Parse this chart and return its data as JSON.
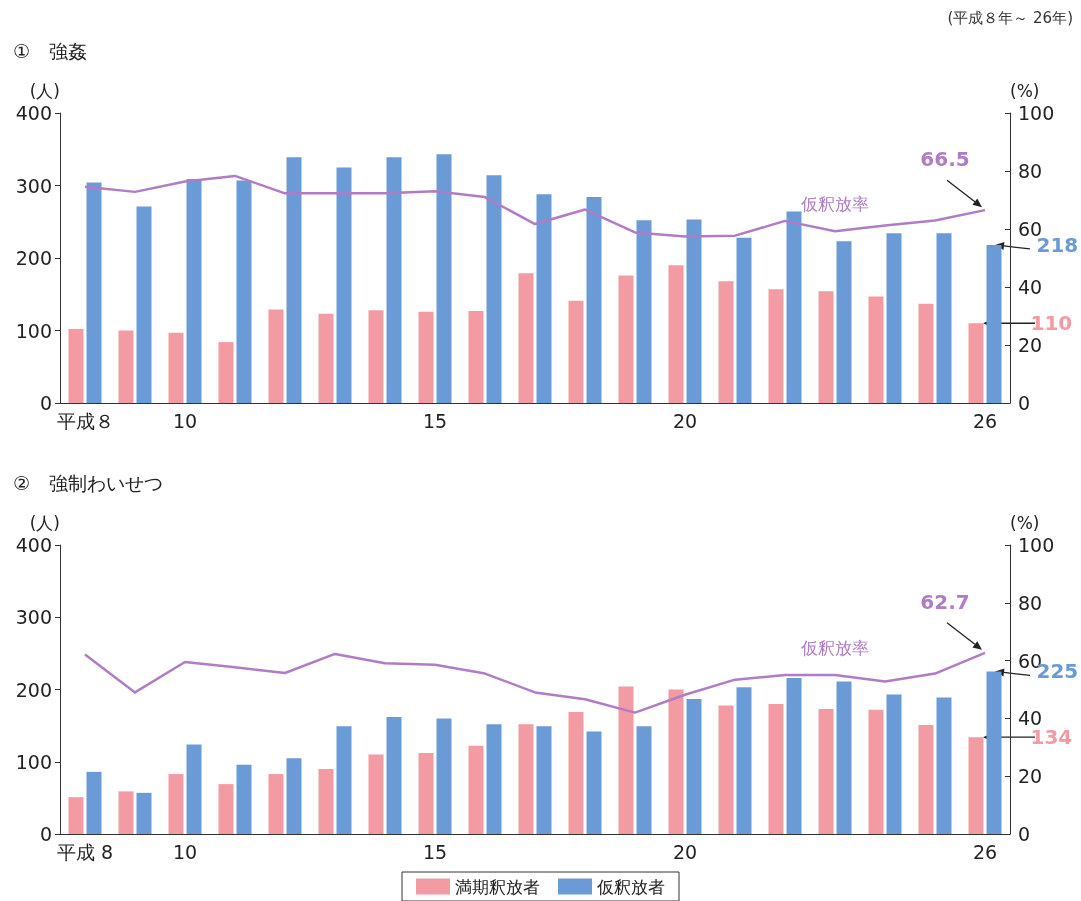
{
  "chart_data": [
    {
      "type": "bar",
      "title": "①　強姦",
      "ylabel": "(人)",
      "y2label": "(%)",
      "annotations": [
        "(平成８年～ 26年)"
      ],
      "categories": [
        "平成８",
        null,
        "10",
        null,
        null,
        null,
        null,
        "15",
        null,
        null,
        null,
        null,
        "20",
        null,
        null,
        null,
        null,
        null,
        "26"
      ],
      "ylim": [
        0,
        400
      ],
      "yticks": [
        0,
        100,
        200,
        300,
        400
      ],
      "y2lim": [
        0,
        100
      ],
      "y2ticks": [
        0,
        20,
        40,
        60,
        80,
        100
      ],
      "legend": false,
      "grid": false,
      "series": [
        {
          "color": "#f29ba2",
          "values": [
            102,
            100,
            97,
            84,
            129,
            123,
            128,
            126,
            127,
            179,
            141,
            176,
            190,
            168,
            157,
            154,
            147,
            137,
            110
          ],
          "value_labels": [
            null,
            null,
            null,
            null,
            null,
            null,
            null,
            null,
            null,
            null,
            null,
            null,
            null,
            null,
            null,
            null,
            null,
            null,
            "110"
          ]
        },
        {
          "color": "#6b9bd6",
          "values": [
            304,
            271,
            309,
            307,
            339,
            325,
            339,
            343,
            314,
            288,
            284,
            252,
            253,
            228,
            264,
            223,
            234,
            234,
            218
          ],
          "value_labels": [
            null,
            null,
            null,
            null,
            null,
            null,
            null,
            null,
            null,
            null,
            null,
            null,
            null,
            null,
            null,
            null,
            null,
            null,
            "218"
          ]
        },
        {
          "name": "仮釈放率",
          "type": "line",
          "axis": "y2",
          "color": "#b07cc6",
          "marker": "none",
          "values": [
            74.6,
            72.8,
            76.4,
            78.3,
            72.3,
            72.3,
            72.3,
            73.0,
            71.0,
            61.7,
            66.7,
            58.8,
            57.4,
            57.7,
            62.8,
            59.2,
            61.2,
            62.9,
            66.5
          ],
          "value_labels": [
            null,
            null,
            null,
            null,
            null,
            null,
            null,
            null,
            null,
            null,
            null,
            null,
            null,
            null,
            null,
            null,
            null,
            null,
            "66.5"
          ]
        }
      ]
    },
    {
      "type": "bar",
      "title": "②　強制わいせつ",
      "ylabel": "(人)",
      "y2label": "(%)",
      "categories": [
        "平成 8",
        null,
        "10",
        null,
        null,
        null,
        null,
        "15",
        null,
        null,
        null,
        null,
        "20",
        null,
        null,
        null,
        null,
        null,
        "26"
      ],
      "ylim": [
        0,
        400
      ],
      "yticks": [
        0,
        100,
        200,
        300,
        400
      ],
      "y2lim": [
        0,
        100
      ],
      "y2ticks": [
        0,
        20,
        40,
        60,
        80,
        100
      ],
      "legend": "bottom",
      "grid": false,
      "series": [
        {
          "name": "満期釈放者",
          "color": "#f29ba2",
          "values": [
            51,
            59,
            83,
            69,
            83,
            90,
            110,
            112,
            122,
            152,
            169,
            204,
            200,
            178,
            180,
            173,
            172,
            151,
            134
          ],
          "value_labels": [
            null,
            null,
            null,
            null,
            null,
            null,
            null,
            null,
            null,
            null,
            null,
            null,
            null,
            null,
            null,
            null,
            null,
            null,
            "134"
          ]
        },
        {
          "name": "仮釈放者",
          "color": "#6b9bd6",
          "values": [
            86,
            57,
            124,
            96,
            105,
            149,
            162,
            160,
            152,
            149,
            142,
            149,
            187,
            203,
            216,
            211,
            193,
            189,
            225
          ],
          "value_labels": [
            null,
            null,
            null,
            null,
            null,
            null,
            null,
            null,
            null,
            null,
            null,
            null,
            null,
            null,
            null,
            null,
            null,
            null,
            "225"
          ]
        },
        {
          "name": "仮釈放率",
          "type": "line",
          "axis": "y2",
          "color": "#b07cc6",
          "marker": "none",
          "values": [
            62.1,
            49.0,
            59.5,
            57.7,
            55.7,
            62.3,
            59.1,
            58.6,
            55.5,
            49.0,
            46.6,
            42.0,
            48.2,
            53.4,
            55.0,
            55.0,
            52.8,
            55.5,
            62.7
          ],
          "value_labels": [
            null,
            null,
            null,
            null,
            null,
            null,
            null,
            null,
            null,
            null,
            null,
            null,
            null,
            null,
            null,
            null,
            null,
            null,
            "62.7"
          ]
        }
      ]
    }
  ]
}
